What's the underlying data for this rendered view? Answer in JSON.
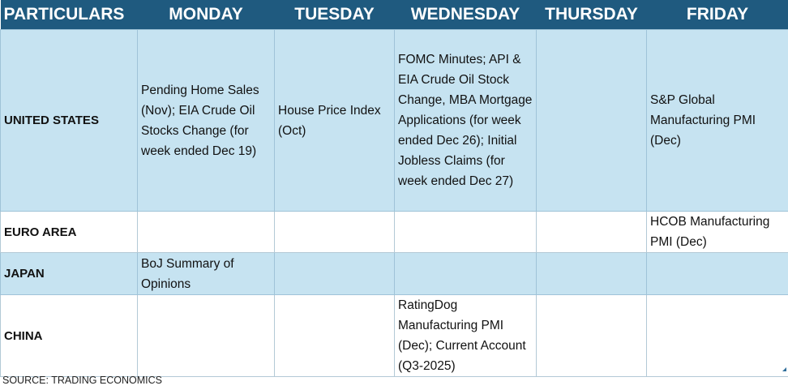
{
  "headers": [
    "PARTICULARS",
    "MONDAY",
    "TUESDAY",
    "WEDNESDAY",
    "THURSDAY",
    "FRIDAY"
  ],
  "rows": [
    {
      "region": "UNITED STATES",
      "cells": [
        "Pending Home Sales (Nov); EIA Crude Oil Stocks Change (for week ended Dec 19)",
        "House Price Index (Oct)",
        "FOMC Minutes; API & EIA Crude Oil Stock Change, MBA Mortgage Applications (for week ended Dec 26); Initial Jobless Claims (for week ended Dec 27)",
        "",
        "S&P Global Manufacturing PMI (Dec)"
      ]
    },
    {
      "region": "EURO AREA",
      "cells": [
        "",
        "",
        "",
        "",
        "HCOB Manufacturing PMI (Dec)"
      ]
    },
    {
      "region": "JAPAN",
      "cells": [
        "BoJ Summary of Opinions",
        "",
        "",
        "",
        ""
      ]
    },
    {
      "region": "CHINA",
      "cells": [
        "",
        "",
        "RatingDog Manufacturing PMI (Dec); Current Account (Q3-2025)",
        "",
        ""
      ]
    }
  ],
  "footer": {
    "source": "SOURCE: TRADING ECONOMICS"
  },
  "colors": {
    "header_bg": "#1f5a7f",
    "header_text": "#ffffff",
    "row_blue": "#c6e3f1",
    "row_white": "#ffffff"
  }
}
